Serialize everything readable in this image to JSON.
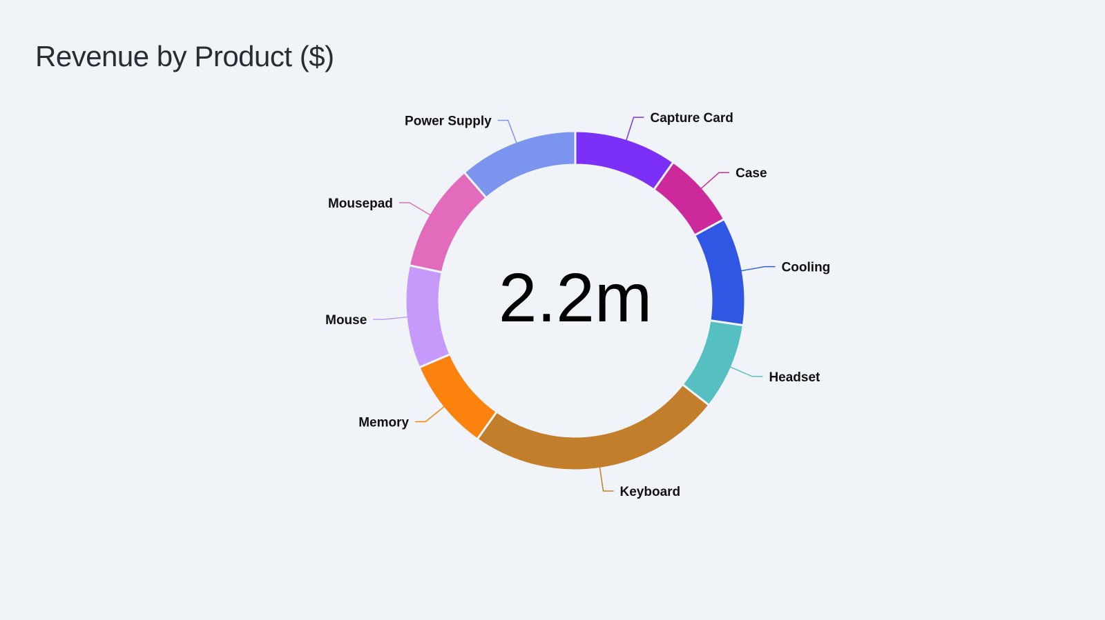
{
  "chart_data": {
    "type": "pie",
    "title": "Revenue by Product ($)",
    "center_total": "2.2m",
    "legend": "none",
    "slices": [
      {
        "name": "Capture Card",
        "value": 9.5,
        "color": "#7b2ff7"
      },
      {
        "name": "Case",
        "value": 7.0,
        "color": "#cc2a9a"
      },
      {
        "name": "Cooling",
        "value": 10.0,
        "color": "#2f57e4"
      },
      {
        "name": "Headset",
        "value": 8.0,
        "color": "#55bfc2"
      },
      {
        "name": "Keyboard",
        "value": 23.5,
        "color": "#c27e2a"
      },
      {
        "name": "Memory",
        "value": 8.5,
        "color": "#fb820d"
      },
      {
        "name": "Mouse",
        "value": 9.5,
        "color": "#c69afa"
      },
      {
        "name": "Mousepad",
        "value": 10.0,
        "color": "#e36bbb"
      },
      {
        "name": "Power Supply",
        "value": 11.0,
        "color": "#7b95ef"
      }
    ]
  }
}
